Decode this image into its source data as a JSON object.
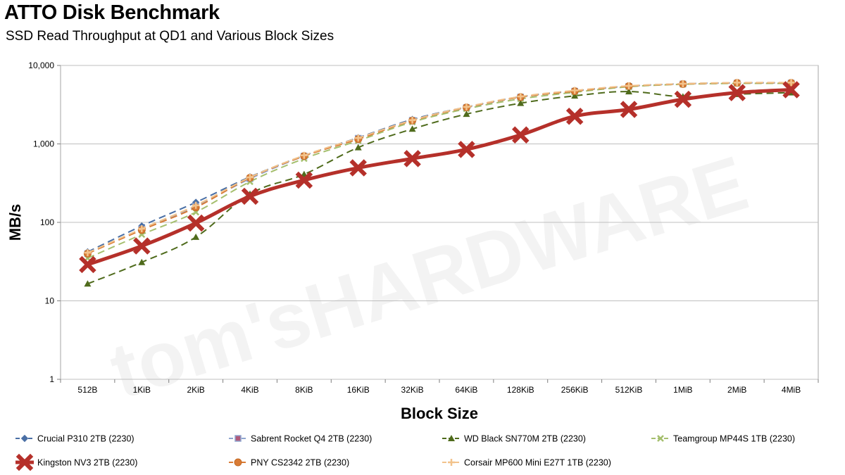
{
  "chart_data": {
    "type": "line",
    "title": "ATTO Disk Benchmark",
    "subtitle": "SSD Read Throughput at QD1 and Various Block Sizes",
    "xlabel": "Block Size",
    "ylabel": "MB/s",
    "yscale": "log",
    "ylim": [
      1,
      10000
    ],
    "yticks": [
      1,
      10,
      100,
      1000,
      10000
    ],
    "ytick_labels": [
      "1",
      "10",
      "100",
      "1,000",
      "10,000"
    ],
    "grid": true,
    "legend_position": "bottom",
    "watermark": "tom'sHARDWARE",
    "categories": [
      "512B",
      "1KiB",
      "2KiB",
      "4KiB",
      "8KiB",
      "16KiB",
      "32KiB",
      "64KiB",
      "128KiB",
      "256KiB",
      "512KiB",
      "1MiB",
      "2MiB",
      "4MiB"
    ],
    "series": [
      {
        "name": "Crucial P310 2TB (2230)",
        "color": "#4a6fa5",
        "style": "dashed",
        "marker": "diamond",
        "values": [
          42,
          90,
          180,
          380,
          710,
          1200,
          2050,
          2950,
          4000,
          4750,
          5450,
          5850,
          6000,
          6000
        ]
      },
      {
        "name": "Sabrent Rocket Q4 2TB (2230)",
        "color": "#8fa5cf",
        "style": "dashed",
        "marker": "square",
        "values": [
          40,
          82,
          160,
          360,
          700,
          1180,
          2000,
          2900,
          3950,
          4700,
          5400,
          5800,
          5950,
          5950
        ]
      },
      {
        "name": "WD Black SN770M 2TB (2230)",
        "color": "#4f6b1c",
        "style": "dashed",
        "marker": "triangle",
        "values": [
          16.5,
          31,
          65,
          230,
          410,
          900,
          1550,
          2400,
          3300,
          4100,
          4650,
          4000,
          4300,
          4500
        ]
      },
      {
        "name": "Teamgroup MP44S 1TB (2230)",
        "color": "#a5bf6e",
        "style": "dashed",
        "marker": "x",
        "values": [
          35,
          70,
          135,
          330,
          650,
          1100,
          1900,
          2800,
          3750,
          4550,
          5350,
          5750,
          5900,
          5900
        ]
      },
      {
        "name": "Kingston NV3 2TB (2230)",
        "color": "#b5302a",
        "style": "solid",
        "marker": "bigx",
        "values": [
          29,
          50,
          98,
          215,
          345,
          495,
          650,
          850,
          1300,
          2250,
          2750,
          3700,
          4500,
          4900
        ]
      },
      {
        "name": "PNY CS2342 2TB (2230)",
        "color": "#d97b35",
        "style": "dashed",
        "marker": "circle",
        "values": [
          40,
          80,
          155,
          370,
          700,
          1150,
          1980,
          2920,
          3950,
          4700,
          5450,
          5800,
          6000,
          6000
        ]
      },
      {
        "name": "Corsair MP600 Mini E27T 1TB (2230)",
        "color": "#f2c38c",
        "style": "dashed",
        "marker": "plus",
        "values": [
          41,
          83,
          165,
          375,
          715,
          1190,
          2010,
          2960,
          4020,
          4800,
          5500,
          5850,
          6050,
          6050
        ]
      }
    ]
  }
}
